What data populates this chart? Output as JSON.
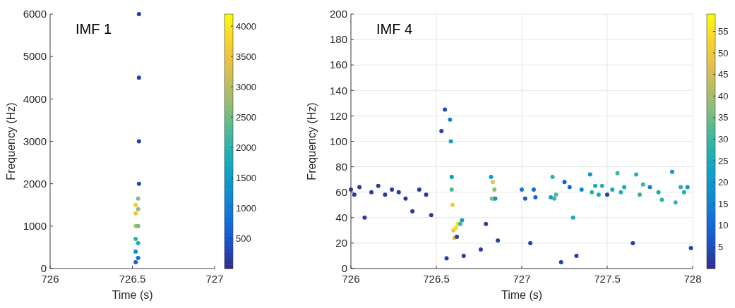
{
  "chart_data": [
    {
      "type": "scatter",
      "title": "IMF 1",
      "xlabel": "Time (s)",
      "ylabel": "Frequency (Hz)",
      "xlim": [
        726,
        727
      ],
      "xticks": [
        726,
        726.5,
        727
      ],
      "ylim": [
        0,
        6000
      ],
      "yticks": [
        0,
        1000,
        2000,
        3000,
        4000,
        5000,
        6000
      ],
      "grid": false,
      "marker": "circle",
      "clim": [
        0,
        4200
      ],
      "cticks": [
        500,
        1000,
        1500,
        2000,
        2500,
        3000,
        3500,
        4000
      ],
      "x": [
        726.52,
        726.52,
        726.52,
        726.52,
        726.52,
        726.52,
        726.535,
        726.535,
        726.535,
        726.535,
        726.535,
        726.54,
        726.54,
        726.54,
        726.54
      ],
      "values": [
        150,
        400,
        700,
        1000,
        1300,
        1500,
        250,
        600,
        1000,
        1400,
        1650,
        2000,
        3000,
        4500,
        6000
      ],
      "cvalues": [
        600,
        1200,
        2000,
        3000,
        3500,
        3600,
        800,
        1800,
        2500,
        2700,
        2600,
        300,
        200,
        200,
        200
      ]
    },
    {
      "type": "scatter",
      "title": "IMF 4",
      "xlabel": "Time (s)",
      "ylabel": "Frequency (Hz)",
      "xlim": [
        726,
        728
      ],
      "xticks": [
        726,
        726.5,
        727,
        727.5,
        728
      ],
      "ylim": [
        0,
        200
      ],
      "yticks": [
        0,
        20,
        40,
        60,
        80,
        100,
        120,
        140,
        160,
        180,
        200
      ],
      "grid": true,
      "marker": "circle",
      "clim": [
        0,
        59
      ],
      "cticks": [
        5,
        10,
        15,
        20,
        25,
        30,
        35,
        40,
        45,
        50,
        55
      ],
      "x": [
        726.0,
        726.02,
        726.05,
        726.08,
        726.12,
        726.16,
        726.2,
        726.24,
        726.28,
        726.32,
        726.36,
        726.4,
        726.44,
        726.47,
        726.53,
        726.55,
        726.56,
        726.58,
        726.585,
        726.59,
        726.59,
        726.595,
        726.6,
        726.605,
        726.615,
        726.625,
        726.64,
        726.65,
        726.62,
        726.66,
        726.76,
        726.79,
        726.82,
        726.825,
        726.83,
        726.835,
        726.84,
        726.845,
        726.86,
        727.0,
        727.02,
        727.05,
        727.07,
        727.08,
        727.17,
        727.18,
        727.19,
        727.2,
        727.23,
        727.25,
        727.28,
        727.3,
        727.32,
        727.35,
        727.4,
        727.41,
        727.43,
        727.45,
        727.47,
        727.5,
        727.53,
        727.56,
        727.58,
        727.6,
        727.65,
        727.67,
        727.69,
        727.71,
        727.75,
        727.8,
        727.82,
        727.88,
        727.9,
        727.93,
        727.95,
        727.97,
        727.99
      ],
      "values": [
        62,
        58,
        64,
        40,
        60,
        65,
        58,
        62,
        60,
        55,
        45,
        62,
        58,
        42,
        108,
        125,
        8,
        117,
        100,
        72,
        62,
        50,
        30,
        24,
        32,
        35,
        35,
        38,
        25,
        10,
        15,
        35,
        72,
        55,
        68,
        55,
        62,
        55,
        22,
        62,
        55,
        20,
        62,
        56,
        56,
        72,
        55,
        58,
        5,
        68,
        64,
        40,
        10,
        62,
        74,
        60,
        65,
        58,
        65,
        58,
        62,
        75,
        60,
        64,
        20,
        74,
        58,
        66,
        64,
        60,
        54,
        76,
        52,
        64,
        60,
        64,
        16
      ],
      "cvalues": [
        2,
        2,
        2,
        2,
        2,
        2,
        2,
        2,
        2,
        2,
        2,
        2,
        2,
        2,
        3,
        5,
        3,
        15,
        22,
        20,
        32,
        50,
        50,
        48,
        54,
        55,
        30,
        20,
        3,
        3,
        3,
        3,
        20,
        35,
        48,
        40,
        38,
        20,
        3,
        12,
        8,
        3,
        10,
        8,
        20,
        28,
        30,
        32,
        3,
        8,
        10,
        25,
        3,
        15,
        20,
        28,
        25,
        25,
        28,
        3,
        25,
        30,
        27,
        25,
        3,
        28,
        28,
        30,
        15,
        25,
        28,
        20,
        30,
        28,
        27,
        20,
        3
      ]
    }
  ]
}
